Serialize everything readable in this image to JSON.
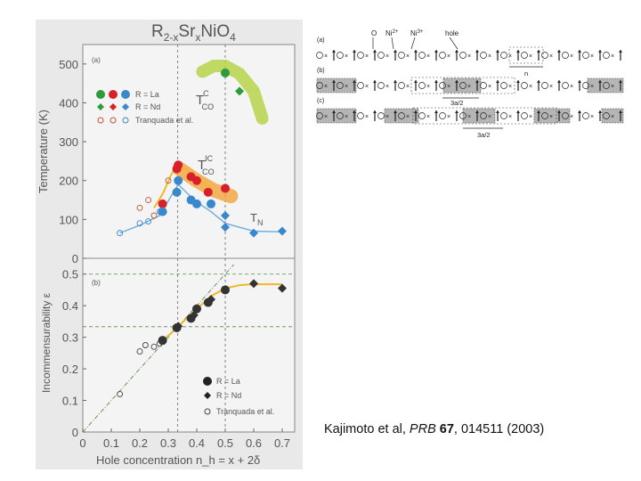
{
  "figure": {
    "title_base": "R",
    "title_sub1": "2-x",
    "title_mid": "Sr",
    "title_sub2": "x",
    "title_end": "NiO",
    "title_sub3": "4"
  },
  "chart_data": [
    {
      "type": "scatter",
      "panel_label": "(a)",
      "ylabel": "Temperature (K)",
      "ylim": [
        0,
        550
      ],
      "yticks": [
        "0",
        "100",
        "200",
        "300",
        "400",
        "500"
      ],
      "xlim": [
        0,
        0.75
      ],
      "legend_placement": "top-left",
      "legend": [
        {
          "label": "R = La",
          "marker": "filled circle"
        },
        {
          "label": "R = Nd",
          "marker": "filled diamond"
        },
        {
          "label": "Tranquada et al.",
          "marker": "open circle"
        }
      ],
      "annotations": [
        {
          "main": "T",
          "sup": "C",
          "sub": "CO"
        },
        {
          "main": "T",
          "sup": "IC",
          "sub": "CO"
        },
        {
          "main": "T",
          "sub": "N"
        }
      ],
      "series": [
        {
          "name": "T_CO^C",
          "color": "#2e9a3c",
          "points": [
            [
              0.5,
              477
            ],
            [
              0.55,
              430
            ]
          ]
        },
        {
          "name": "T_CO^IC",
          "color": "#d8202a",
          "points": [
            [
              0.28,
              140
            ],
            [
              0.33,
              230
            ],
            [
              0.335,
              240
            ],
            [
              0.38,
              210
            ],
            [
              0.4,
              200
            ],
            [
              0.44,
              170
            ],
            [
              0.5,
              180
            ]
          ]
        },
        {
          "name": "T_N",
          "color": "#3a88cc",
          "points": [
            [
              0.28,
              120
            ],
            [
              0.33,
              170
            ],
            [
              0.335,
              200
            ],
            [
              0.38,
              150
            ],
            [
              0.4,
              140
            ],
            [
              0.45,
              140
            ],
            [
              0.5,
              110
            ],
            [
              0.5,
              80
            ],
            [
              0.6,
              65
            ],
            [
              0.7,
              70
            ]
          ]
        },
        {
          "name": "Tranquada et al.",
          "color": "#bb5535",
          "points": [
            [
              0.2,
              130
            ],
            [
              0.23,
              150
            ],
            [
              0.25,
              110
            ],
            [
              0.3,
              200
            ]
          ]
        },
        {
          "name": "Tranquada et al. T_N",
          "color": "#3a88cc",
          "points": [
            [
              0.13,
              65
            ],
            [
              0.2,
              90
            ],
            [
              0.23,
              95
            ],
            [
              0.27,
              120
            ]
          ]
        }
      ]
    },
    {
      "type": "scatter",
      "panel_label": "(b)",
      "ylabel": "Incommensurability ε",
      "ylim": [
        0,
        0.55
      ],
      "yticks": [
        "0",
        "0.1",
        "0.2",
        "0.3",
        "0.4",
        "0.5"
      ],
      "xlabel": "Hole concentration  n_h = x + 2δ",
      "xticks": [
        "0",
        "0.1",
        "0.2",
        "0.3",
        "0.4",
        "0.5",
        "0.6",
        "0.7"
      ],
      "xlim": [
        0,
        0.75
      ],
      "legend_placement": "bottom-right",
      "legend": [
        {
          "label": "R = La",
          "marker": "filled circle"
        },
        {
          "label": "R = Nd",
          "marker": "filled diamond"
        },
        {
          "label": "Tranquada et al.",
          "marker": "open circle"
        }
      ],
      "series": [
        {
          "name": "R = La",
          "points": [
            [
              0.28,
              0.29
            ],
            [
              0.33,
              0.33
            ],
            [
              0.38,
              0.36
            ],
            [
              0.4,
              0.39
            ],
            [
              0.44,
              0.41
            ],
            [
              0.5,
              0.45
            ]
          ]
        },
        {
          "name": "R = Nd",
          "points": [
            [
              0.335,
              0.335
            ],
            [
              0.39,
              0.37
            ],
            [
              0.45,
              0.42
            ],
            [
              0.6,
              0.47
            ],
            [
              0.7,
              0.455
            ]
          ]
        },
        {
          "name": "Tranquada et al.",
          "points": [
            [
              0.13,
              0.12
            ],
            [
              0.2,
              0.255
            ],
            [
              0.22,
              0.275
            ],
            [
              0.25,
              0.27
            ],
            [
              0.27,
              0.28
            ]
          ]
        }
      ]
    },
    {
      "type": "diagram",
      "rows": [
        {
          "label": "(a)"
        },
        {
          "label": "(b)"
        },
        {
          "label": "(c)"
        }
      ],
      "annotations": [
        "O",
        "Ni",
        "2+",
        "Ni",
        "3+",
        "hole",
        "n",
        "3a/2",
        "3a/2"
      ]
    }
  ],
  "citation": {
    "authors": "Kajimoto et al,",
    "journal": "PRB",
    "volume": "67",
    "pages": ", 014511 (2003)"
  }
}
